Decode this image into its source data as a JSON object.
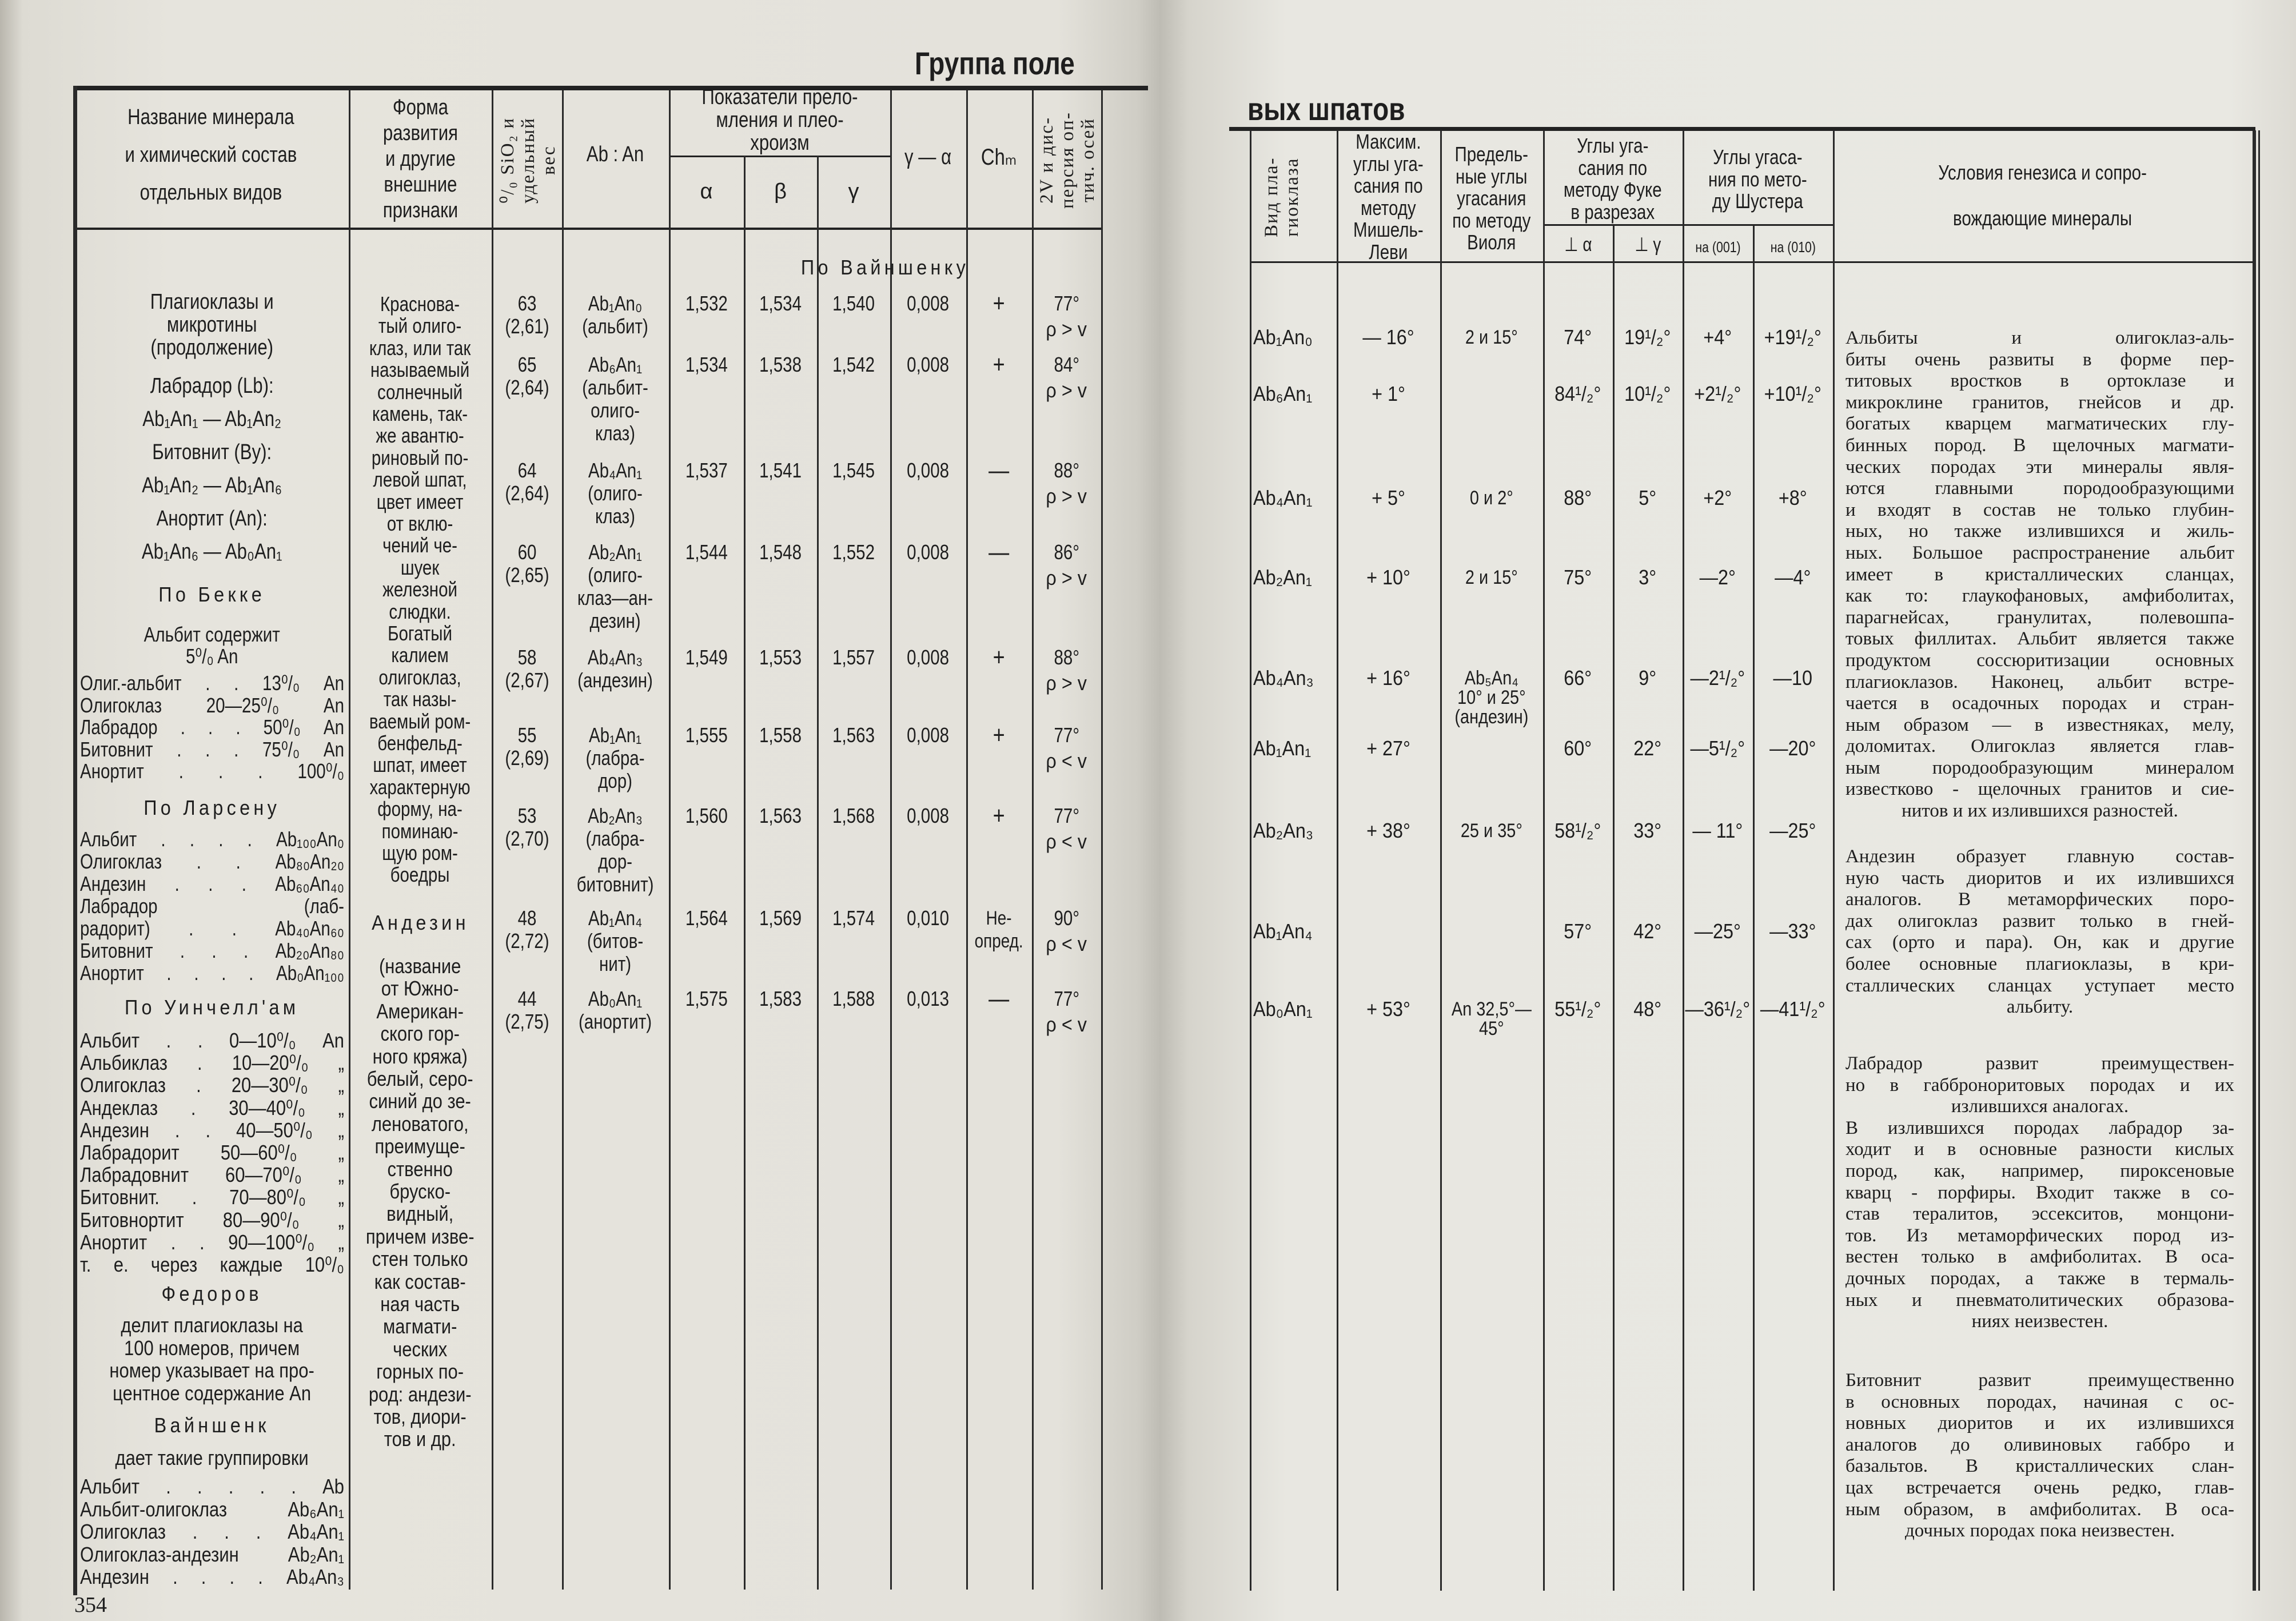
{
  "left_page": {
    "title": "Группа поле",
    "page_number": "354",
    "headers": {
      "name": [
        "Название минерала",
        "и химический состав",
        "отдельных видов"
      ],
      "form": [
        "Форма",
        "развития",
        "и другие",
        "внешние",
        "признаки"
      ],
      "sio2": [
        "⁰/₀ SiO₂ и",
        "удельный",
        "вес"
      ],
      "ab_an": "Ab : An",
      "refraction": [
        "Показатели прело-",
        "мления и плео-",
        "хроизм"
      ],
      "alpha": "α",
      "beta": "β",
      "gamma": "γ",
      "gamma_minus_alpha": "γ — α",
      "chm": "Chₘ",
      "two_v": [
        "2V и дис-",
        "персия оп-",
        "тич. осей"
      ]
    },
    "section_label": "По Вайншенку",
    "name_column": {
      "intro": [
        "Плагиоклазы и",
        "микротины",
        "(продолжение)"
      ],
      "varieties": [
        "Лабрадор (Lb):",
        "Ab₁An₁ — Ab₁An₂",
        "Битовнит (By):",
        "Ab₁An₂ — Ab₁An₆",
        "Анортит (An):",
        "Ab₁An₆ — Ab₀An₁"
      ],
      "becke_title": "По Бекке",
      "becke_intro": [
        "Альбит содержит",
        "5⁰/₀ An"
      ],
      "becke_list": [
        "Олиг.-альбит . . 13⁰/₀ An",
        "Олигоклаз  20—25⁰/₀ An",
        "Лабрадор . . . 50⁰/₀ An",
        "Битовнит . . . 75⁰/₀ An",
        "Анортит . . . 100⁰/₀"
      ],
      "larsen_title": "По Ларсену",
      "larsen_list": [
        "Альбит . . . . Ab₁₀₀An₀",
        "Олигоклаз . . Ab₈₀An₂₀",
        "Андезин . . . Ab₆₀An₄₀",
        "Лабрадор (лаб-",
        "  радорит) . . Ab₄₀An₆₀",
        "Битовнит . . . Ab₂₀An₈₀",
        "Анортит . . . . Ab₀An₁₀₀"
      ],
      "winchell_title": "По Уинчелл'ам",
      "winchell_list": [
        "Альбит . . 0—10⁰/₀ An",
        "Альбиклаз . 10—20⁰/₀ „",
        "Олигоклаз . 20—30⁰/₀ „",
        "Андеклаз . 30—40⁰/₀ „",
        "Андезин . . 40—50⁰/₀ „",
        "Лабрадорит 50—60⁰/₀ „",
        "Лабрадовнит 60—70⁰/₀ „",
        "Битовнит. . 70—80⁰/₀ „",
        "Битовнортит 80—90⁰/₀ „",
        "Анортит . . 90—100⁰/₀ „",
        "т. е. через каждые 10⁰/₀"
      ],
      "fedorov_title": "Федоров",
      "fedorov_text": [
        "делит плагиоклазы на",
        "100 номеров, причем",
        "номер указывает на про-",
        "центное содержание An"
      ],
      "weinschenk_title": "Вайншенк",
      "weinschenk_intro": "дает такие группировки",
      "weinschenk_list": [
        "Альбит . . . . . Ab",
        "Альбит-олигоклаз Ab₆An₁",
        "Олигоклаз . . . Ab₄An₁",
        "Олигоклаз-андезин Ab₂An₁",
        "Андезин . . . . Ab₄An₃"
      ]
    },
    "form_column": {
      "block1": [
        "Краснова-",
        "тый олиго-",
        "клаз, или так",
        "называемый",
        "солнечный",
        "камень, так-",
        "же авантю-",
        "риновый по-",
        "левой шпат,",
        "цвет имеет",
        "от вклю-",
        "чений че-",
        "шуек",
        "железной",
        "слюдки.",
        "Богатый",
        "калием",
        "олигоклаз,",
        "так назы-",
        "ваемый ром-",
        "бенфельд-",
        "шпат, имеет",
        "характерную",
        "форму, на-",
        "поминаю-",
        "щую ром-",
        "боедры"
      ],
      "andesine_title": "Андезин",
      "block2": [
        "(название",
        "от Южно-",
        "Американ-",
        "ского гор-",
        "ного кряжа)",
        "белый, серо-",
        "синий до зе-",
        "леноватого,",
        "преимуще-",
        "ственно",
        "бруско-",
        "видный,",
        "причем изве-",
        "стен только",
        "как состав-",
        "ная часть",
        "магмати-",
        "ческих",
        "горных по-",
        "род: андези-",
        "тов, диори-",
        "тов и др."
      ]
    },
    "rows": [
      {
        "sio2": "63",
        "sg": "(2,61)",
        "ab_an": "Ab₁An₀",
        "ab_an_note": [
          "(альбит)"
        ],
        "alpha": "1,532",
        "beta": "1,534",
        "gamma": "1,540",
        "gamma_minus_alpha": "0,008",
        "chm": [
          "+"
        ],
        "two_v": "77°",
        "dispersion": "ρ > v"
      },
      {
        "sio2": "65",
        "sg": "(2,64)",
        "ab_an": "Ab₆An₁",
        "ab_an_note": [
          "(альбит-",
          "олиго-",
          "клаз)"
        ],
        "alpha": "1,534",
        "beta": "1,538",
        "gamma": "1,542",
        "gamma_minus_alpha": "0,008",
        "chm": [
          "+"
        ],
        "two_v": "84°",
        "dispersion": "ρ > v"
      },
      {
        "sio2": "64",
        "sg": "(2,64)",
        "ab_an": "Ab₄An₁",
        "ab_an_note": [
          "(олиго-",
          "клаз)"
        ],
        "alpha": "1,537",
        "beta": "1,541",
        "gamma": "1,545",
        "gamma_minus_alpha": "0,008",
        "chm": [
          "—"
        ],
        "two_v": "88°",
        "dispersion": "ρ > v"
      },
      {
        "sio2": "60",
        "sg": "(2,65)",
        "ab_an": "Ab₂An₁",
        "ab_an_note": [
          "(олиго-",
          "клаз—ан-",
          "дезин)"
        ],
        "alpha": "1,544",
        "beta": "1,548",
        "gamma": "1,552",
        "gamma_minus_alpha": "0,008",
        "chm": [
          "—"
        ],
        "two_v": "86°",
        "dispersion": "ρ > v"
      },
      {
        "sio2": "58",
        "sg": "(2,67)",
        "ab_an": "Ab₄An₃",
        "ab_an_note": [
          "(андезин)"
        ],
        "alpha": "1,549",
        "beta": "1,553",
        "gamma": "1,557",
        "gamma_minus_alpha": "0,008",
        "chm": [
          "+"
        ],
        "two_v": "88°",
        "dispersion": "ρ > v"
      },
      {
        "sio2": "55",
        "sg": "(2,69)",
        "ab_an": "Ab₁An₁",
        "ab_an_note": [
          "(лабра-",
          "дор)"
        ],
        "alpha": "1,555",
        "beta": "1,558",
        "gamma": "1,563",
        "gamma_minus_alpha": "0,008",
        "chm": [
          "+"
        ],
        "two_v": "77°",
        "dispersion": "ρ < v"
      },
      {
        "sio2": "53",
        "sg": "(2,70)",
        "ab_an": "Ab₂An₃",
        "ab_an_note": [
          "(лабра-",
          "дор-",
          "битовнит)"
        ],
        "alpha": "1,560",
        "beta": "1,563",
        "gamma": "1,568",
        "gamma_minus_alpha": "0,008",
        "chm": [
          "+"
        ],
        "two_v": "77°",
        "dispersion": "ρ < v"
      },
      {
        "sio2": "48",
        "sg": "(2,72)",
        "ab_an": "Ab₁An₄",
        "ab_an_note": [
          "(битов-",
          "нит)"
        ],
        "alpha": "1,564",
        "beta": "1,569",
        "gamma": "1,574",
        "gamma_minus_alpha": "0,010",
        "chm": [
          "Не-",
          "опред."
        ],
        "two_v": "90°",
        "dispersion": "ρ < v"
      },
      {
        "sio2": "44",
        "sg": "(2,75)",
        "ab_an": "Ab₀An₁",
        "ab_an_note": [
          "(анортит)"
        ],
        "alpha": "1,575",
        "beta": "1,583",
        "gamma": "1,588",
        "gamma_minus_alpha": "0,013",
        "chm": [
          "—"
        ],
        "two_v": "77°",
        "dispersion": "ρ < v"
      }
    ]
  },
  "right_page": {
    "title": "вых шпатов",
    "headers": {
      "kind": [
        "Вид пла-",
        "гиоклаза"
      ],
      "michel_levy": [
        "Максим.",
        "углы уга-",
        "сания по",
        "методу",
        "Мишель-",
        "Леви"
      ],
      "viola": [
        "Предель-",
        "ные углы",
        "угасания",
        "по методу",
        "Виоля"
      ],
      "fouque": [
        "Углы уга-",
        "сания по",
        "методу Фуке",
        "в разрезах"
      ],
      "fouque_sub": [
        "⊥ α",
        "⊥ γ"
      ],
      "schuster": [
        "Углы угаса-",
        "ния по мето-",
        "ду Шустера"
      ],
      "schuster_sub": [
        "на (001)",
        "на (010)"
      ],
      "conditions": [
        "Условия генезиса и сопро-",
        "вождающие минералы"
      ]
    },
    "rows": [
      {
        "kind": "Ab₁An₀",
        "michel_levy": "— 16°",
        "viola": [
          "2 и 15°"
        ],
        "perp_alpha": "74°",
        "perp_gamma": "19¹/₂°",
        "on_001": "+4°",
        "on_010": "+19¹/₂°"
      },
      {
        "kind": "Ab₆An₁",
        "michel_levy": "+ 1°",
        "viola": [],
        "perp_alpha": "84¹/₂°",
        "perp_gamma": "10¹/₂°",
        "on_001": "+2¹/₂°",
        "on_010": "+10¹/₂°"
      },
      {
        "kind": "Ab₄An₁",
        "michel_levy": "+ 5°",
        "viola": [
          "0 и 2°"
        ],
        "perp_alpha": "88°",
        "perp_gamma": "5°",
        "on_001": "+2°",
        "on_010": "+8°"
      },
      {
        "kind": "Ab₂An₁",
        "michel_levy": "+ 10°",
        "viola": [
          "2 и 15°"
        ],
        "perp_alpha": "75°",
        "perp_gamma": "3°",
        "on_001": "—2°",
        "on_010": "—4°"
      },
      {
        "kind": "Ab₄An₃",
        "michel_levy": "+ 16°",
        "viola": [
          "Ab₅An₄",
          "10° и 25°",
          "(андезин)"
        ],
        "perp_alpha": "66°",
        "perp_gamma": "9°",
        "on_001": "—2¹/₂°",
        "on_010": "—10"
      },
      {
        "kind": "Ab₁An₁",
        "michel_levy": "+ 27°",
        "viola": [],
        "perp_alpha": "60°",
        "perp_gamma": "22°",
        "on_001": "—5¹/₂°",
        "on_010": "—20°"
      },
      {
        "kind": "Ab₂An₃",
        "michel_levy": "+ 38°",
        "viola": [
          "25 и 35°"
        ],
        "perp_alpha": "58¹/₂°",
        "perp_gamma": "33°",
        "on_001": "— 11°",
        "on_010": "—25°"
      },
      {
        "kind": "Ab₁An₄",
        "michel_levy": "",
        "viola": [],
        "perp_alpha": "57°",
        "perp_gamma": "42°",
        "on_001": "—25°",
        "on_010": "—33°"
      },
      {
        "kind": "Ab₀An₁",
        "michel_levy": "+ 53°",
        "viola": [
          "An 32,5°—",
          "45°"
        ],
        "perp_alpha": "55¹/₂°",
        "perp_gamma": "48°",
        "on_001": "—36¹/₂°",
        "on_010": "—41¹/₂°"
      }
    ],
    "paragraphs": [
      {
        "lines": [
          "Альбиты и олигоклаз-аль-",
          "биты очень развиты в форме пер-",
          "титовых вростков в ортоклазе и",
          "микроклине гранитов, гнейсов и др.",
          "богатых кварцем магматических глу-",
          "бинных пород. В щелочных магмати-",
          "ческих породах эти минералы явля-",
          "ются главными породообразующими",
          "и входят в состав не только глубин-",
          "ных, но также излившихся и жиль-",
          "ных. Большое распространение альбит",
          "имеет в кристаллических сланцах,",
          "как то: глаукофановых, амфиболитах,",
          "парагнейсах, гранулитах, полевошпа-",
          "товых филлитах. Альбит является также",
          "продуктом соссюритизации основных",
          "плагиоклазов. Наконец, альбит встре-",
          "чается в осадочных породах и стран-",
          "ным образом — в известняках, мелу,",
          "доломитах. Олигоклаз является глав-",
          "ным породообразующим минералом",
          "известково - щелочных гранитов и сие-",
          "нитов и их излившихся разностей."
        ],
        "centered": [
          22
        ]
      },
      {
        "lines": [
          "Андезин образует главную состав-",
          "ную часть диоритов и их излившихся",
          "аналогов. В метаморфических поро-",
          "дах олигоклаз развит только в гней-",
          "сах (орто и пара). Он, как и другие",
          "более основные плагиоклазы, в кри-",
          "сталлических сланцах уступает место",
          "альбиту."
        ],
        "centered": [
          7
        ]
      },
      {
        "lines": [
          "Лабрадор развит преимуществен-",
          "но в габброноритовых породах и их",
          "излившихся аналогах.",
          "В излившихся породах лабрадор за-",
          "ходит и в основные разности кислых",
          "пород, как, например, пироксеновые",
          "кварц - порфиры. Входит также в со-",
          "став тералитов, эссекситов, монцони-",
          "тов. Из метаморфических пород из-",
          "вестен только в амфиболитах. В оса-",
          "дочных породах, а также в термаль-",
          "ных и пневматолитических образова-",
          "ниях неизвестен."
        ],
        "centered": [
          2,
          12
        ]
      },
      {
        "lines": [
          "Битовнит развит преимущественно",
          "в основных породах, начиная с ос-",
          "новных диоритов и их излившихся",
          "аналогов до оливиновых габбро и",
          "базальтов. В кристаллических слан-",
          "цах встречается очень редко, глав-",
          "ным образом, в амфиболитах. В оса-",
          "дочных породах пока неизвестен."
        ],
        "centered": [
          7
        ]
      }
    ]
  },
  "colors": {
    "paper": "#e6e4dd",
    "ink": "#1e1e1e"
  }
}
